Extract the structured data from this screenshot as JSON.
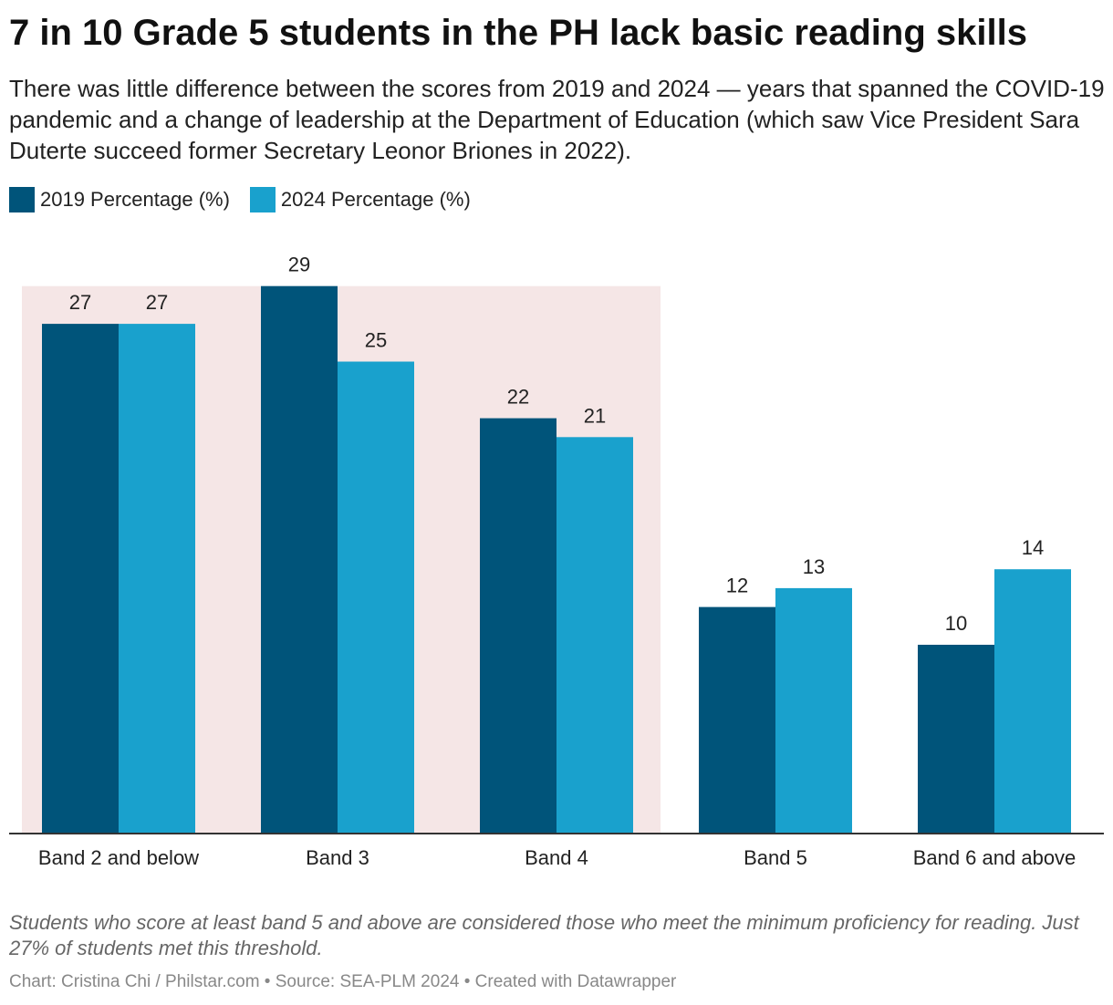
{
  "header": {
    "title": "7 in 10 Grade 5 students in the PH lack basic reading skills",
    "subtitle": "There was little difference between the scores from 2019 and 2024 — years that spanned the COVID-19 pandemic and a change of leadership at the Department of Education (which saw Vice President Sara Duterte succeed former Secretary Leonor Briones in 2022)."
  },
  "legend": [
    {
      "label": "2019 Percentage (%)",
      "color": "#00547a"
    },
    {
      "label": "2024 Percentage (%)",
      "color": "#19a1cd"
    }
  ],
  "chart_data": {
    "type": "bar",
    "title": "7 in 10 Grade 5 students in the PH lack basic reading skills",
    "xlabel": "",
    "ylabel": "",
    "categories": [
      "Band 2 and below",
      "Band 3",
      "Band 4",
      "Band 5",
      "Band 6 and above"
    ],
    "series": [
      {
        "name": "2019 Percentage (%)",
        "color": "#00547a",
        "values": [
          27,
          29,
          22,
          12,
          10
        ]
      },
      {
        "name": "2024 Percentage (%)",
        "color": "#19a1cd",
        "values": [
          27,
          25,
          21,
          13,
          14
        ]
      }
    ],
    "ylim": [
      0,
      29
    ],
    "grid": false,
    "legend_position": "top-left",
    "highlight": {
      "categories": [
        "Band 2 and below",
        "Band 3",
        "Band 4"
      ],
      "color": "#f5e6e6"
    }
  },
  "footer": {
    "notes": "Students who score at least band 5 and above are considered those who meet the minimum proficiency for reading. Just 27% of students met this threshold.",
    "byline": "Chart: Cristina Chi / Philstar.com • Source: SEA-PLM 2024 • Created with Datawrapper"
  }
}
